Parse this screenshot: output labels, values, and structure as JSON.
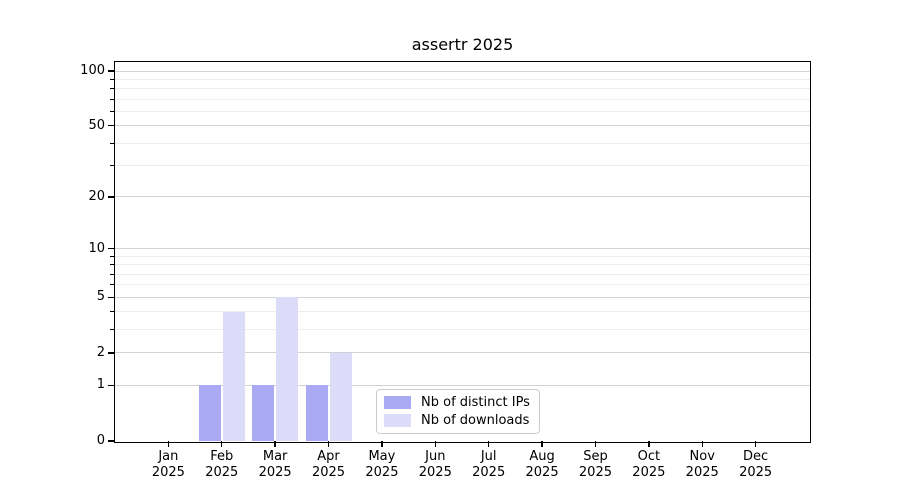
{
  "chart_data": {
    "type": "bar",
    "title": "assertr 2025",
    "year": "2025",
    "categories": [
      "Jan",
      "Feb",
      "Mar",
      "Apr",
      "May",
      "Jun",
      "Jul",
      "Aug",
      "Sep",
      "Oct",
      "Nov",
      "Dec"
    ],
    "series": [
      {
        "name": "Nb of distinct IPs",
        "color": "#a9a9f4",
        "values": [
          0,
          1,
          1,
          1,
          0,
          0,
          0,
          0,
          0,
          0,
          0,
          0
        ]
      },
      {
        "name": "Nb of downloads",
        "color": "#dcdcf8",
        "values": [
          0,
          4,
          5,
          2,
          0,
          0,
          0,
          0,
          0,
          0,
          0,
          0
        ]
      }
    ],
    "yscale": "log1p",
    "ylim": [
      0,
      112
    ],
    "yticks": [
      0,
      1,
      2,
      5,
      10,
      20,
      50,
      100
    ],
    "yticks_minor": [
      3,
      4,
      6,
      7,
      8,
      9,
      30,
      40,
      60,
      70,
      80,
      90
    ],
    "xlabel": "",
    "ylabel": "",
    "grid": "horizontal",
    "legend_position": "lower center"
  }
}
